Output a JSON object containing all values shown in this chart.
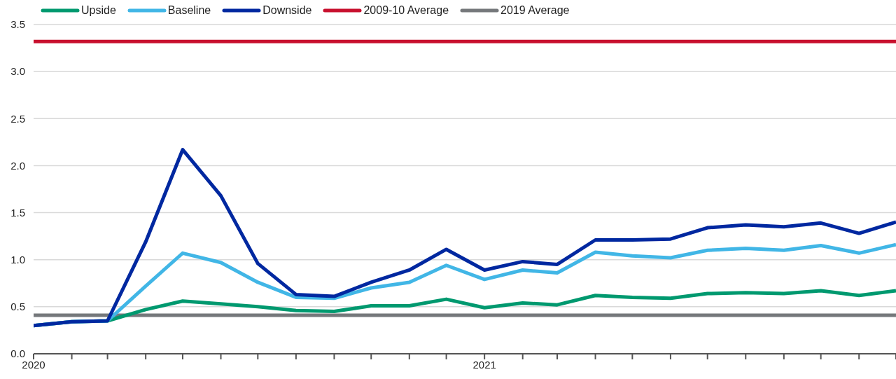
{
  "chart_data": {
    "type": "line",
    "x": [
      "2020-01",
      "2020-02",
      "2020-03",
      "2020-04",
      "2020-05",
      "2020-06",
      "2020-07",
      "2020-08",
      "2020-09",
      "2020-10",
      "2020-11",
      "2020-12",
      "2021-01",
      "2021-02",
      "2021-03",
      "2021-04",
      "2021-05",
      "2021-06",
      "2021-07",
      "2021-08",
      "2021-09",
      "2021-10",
      "2021-11",
      "2021-12"
    ],
    "series": [
      {
        "name": "Upside",
        "color": "#00996f",
        "values": [
          0.3,
          0.34,
          0.35,
          0.47,
          0.56,
          0.53,
          0.5,
          0.46,
          0.45,
          0.51,
          0.51,
          0.58,
          0.49,
          0.54,
          0.52,
          0.62,
          0.6,
          0.59,
          0.64,
          0.65,
          0.64,
          0.67,
          0.62,
          0.67
        ]
      },
      {
        "name": "Baseline",
        "color": "#41b6e6",
        "values": [
          0.3,
          0.34,
          0.35,
          0.72,
          1.07,
          0.97,
          0.76,
          0.6,
          0.59,
          0.7,
          0.76,
          0.94,
          0.79,
          0.89,
          0.86,
          1.08,
          1.04,
          1.02,
          1.1,
          1.12,
          1.1,
          1.15,
          1.07,
          1.16
        ]
      },
      {
        "name": "Downside",
        "color": "#0028a0",
        "values": [
          0.3,
          0.34,
          0.35,
          1.19,
          2.17,
          1.68,
          0.96,
          0.63,
          0.61,
          0.76,
          0.89,
          1.11,
          0.89,
          0.98,
          0.95,
          1.21,
          1.21,
          1.22,
          1.34,
          1.37,
          1.35,
          1.39,
          1.28,
          1.4
        ]
      }
    ],
    "ref_lines": [
      {
        "axis": "y",
        "value": 3.32,
        "label": "2009-10 Average",
        "color": "#c8102e"
      },
      {
        "axis": "y",
        "value": 0.41,
        "label": "2019 Average",
        "color": "#75787b"
      }
    ],
    "xlim": [
      "2020-01",
      "2021-12"
    ],
    "xticks": [
      {
        "value": "2020-01",
        "label": "2020"
      },
      {
        "value": "2020-02",
        "label": null
      },
      {
        "value": "2020-03",
        "label": null
      },
      {
        "value": "2020-04",
        "label": null
      },
      {
        "value": "2020-05",
        "label": null
      },
      {
        "value": "2020-06",
        "label": null
      },
      {
        "value": "2020-07",
        "label": null
      },
      {
        "value": "2020-08",
        "label": null
      },
      {
        "value": "2020-09",
        "label": null
      },
      {
        "value": "2020-10",
        "label": null
      },
      {
        "value": "2020-11",
        "label": null
      },
      {
        "value": "2020-12",
        "label": null
      },
      {
        "value": "2021-01",
        "label": "2021"
      },
      {
        "value": "2021-02",
        "label": null
      },
      {
        "value": "2021-03",
        "label": null
      },
      {
        "value": "2021-04",
        "label": null
      },
      {
        "value": "2021-05",
        "label": null
      },
      {
        "value": "2021-06",
        "label": null
      },
      {
        "value": "2021-07",
        "label": null
      },
      {
        "value": "2021-08",
        "label": null
      },
      {
        "value": "2021-09",
        "label": null
      },
      {
        "value": "2021-10",
        "label": null
      },
      {
        "value": "2021-11",
        "label": null
      },
      {
        "value": "2021-12",
        "label": null
      }
    ],
    "ylim": [
      0,
      3.5
    ],
    "yticks": [
      {
        "value": 0,
        "label": "0.0"
      },
      {
        "value": 0.5,
        "label": "0.5"
      },
      {
        "value": 1,
        "label": "1.0"
      },
      {
        "value": 1.5,
        "label": "1.5"
      },
      {
        "value": 2,
        "label": "2.0"
      },
      {
        "value": 2.5,
        "label": "2.5"
      },
      {
        "value": 3,
        "label": "3.0"
      },
      {
        "value": 3.5,
        "label": "3.5"
      }
    ],
    "grid": "y",
    "legend": "top left",
    "marker": "none",
    "line_style": "solid"
  }
}
